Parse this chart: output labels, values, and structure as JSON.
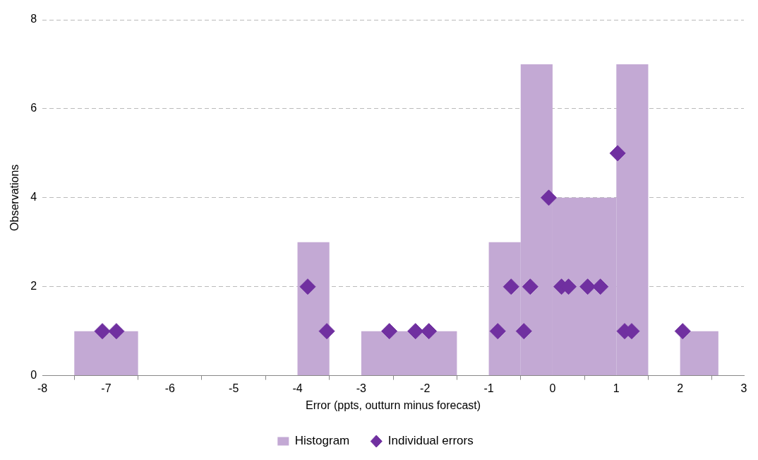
{
  "chart_data": {
    "type": "histogram",
    "xlabel": "Error (ppts, outturn minus forecast)",
    "ylabel": "Observations",
    "bins": [
      -7.5,
      -6.5,
      -4,
      -3.5,
      -3,
      -1.5,
      -1,
      -0.5,
      0,
      1,
      1.5,
      2,
      2.6
    ],
    "series": [
      {
        "name": "Histogram",
        "color": "#c3a9d4",
        "values": [
          1,
          0,
          3,
          0,
          1,
          0,
          3,
          7,
          4,
          7,
          0,
          1
        ]
      },
      {
        "name": "Individual errors",
        "type": "scatter",
        "color": "#7030a0",
        "x": [
          -7.06,
          -6.84,
          -3.84,
          -3.54,
          -2.56,
          -2.15,
          -1.94,
          -0.86,
          -0.65,
          -0.45,
          -0.35,
          -0.06,
          0.14,
          0.25,
          0.55,
          0.75,
          1.02,
          1.13,
          1.24,
          2.04
        ],
        "values": [
          1,
          1,
          2,
          1,
          1,
          1,
          1,
          1,
          2,
          1,
          2,
          4,
          2,
          2,
          2,
          2,
          5,
          1,
          1,
          1
        ]
      }
    ],
    "xlim": [
      -8,
      3
    ],
    "xticks": [
      -8,
      -7,
      -6,
      -5,
      -4,
      -3,
      -2,
      -1,
      0,
      1,
      2,
      3
    ],
    "ylim": [
      0,
      8
    ],
    "yticks": [
      0,
      2,
      4,
      6,
      8
    ],
    "grid": "y",
    "legend": "bottom",
    "marker": "diamond"
  }
}
